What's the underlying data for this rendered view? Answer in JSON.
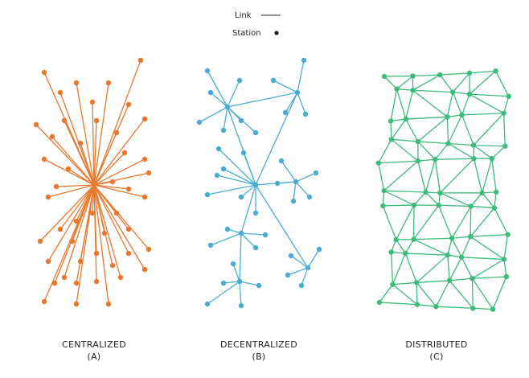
{
  "legend": {
    "link": "Link",
    "station": "Station"
  },
  "networks": [
    {
      "name": "CENTRALIZED",
      "letter": "(A)"
    },
    {
      "name": "DECENTRALIZED",
      "letter": "(B)"
    },
    {
      "name": "DISTRIBUTED",
      "letter": "(C)"
    }
  ]
}
